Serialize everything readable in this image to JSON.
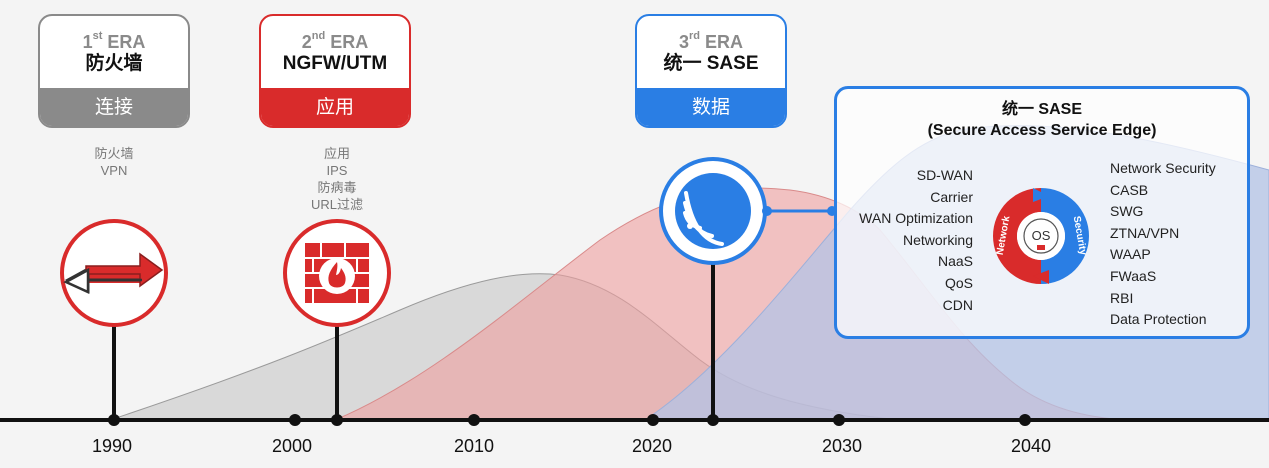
{
  "eras": [
    {
      "num": "1",
      "suffix": "st",
      "era_word": "ERA",
      "name": "防火墙",
      "focus": "连接",
      "color": "#8a8a8a",
      "features": [
        "防火墙",
        "VPN"
      ]
    },
    {
      "num": "2",
      "suffix": "nd",
      "era_word": "ERA",
      "name": "NGFW/UTM",
      "focus": "应用",
      "color": "#d92b2b",
      "features": [
        "应用",
        "IPS",
        "防病毒",
        "URL过滤"
      ]
    },
    {
      "num": "3",
      "suffix": "rd",
      "era_word": "ERA",
      "name": "统一 SASE",
      "focus": "数据",
      "color": "#2a7ee4",
      "features": []
    }
  ],
  "timeline": {
    "years": [
      "1990",
      "2000",
      "2010",
      "2020",
      "2030",
      "2040"
    ]
  },
  "sase": {
    "title_line1": "统一 SASE",
    "title_line2": "(Secure Access Service Edge)",
    "network_items": [
      "SD-WAN",
      "Carrier",
      "WAN Optimization",
      "Networking",
      "NaaS",
      "QoS",
      "CDN"
    ],
    "security_items": [
      "Network Security",
      "CASB",
      "SWG",
      "ZTNA/VPN",
      "WAAP",
      "FWaaS",
      "RBI",
      "Data Protection"
    ],
    "ring_left_label": "Network",
    "ring_right_label": "Security",
    "core_label": "OS"
  },
  "icons": {
    "era1": "bidirectional-arrow-icon",
    "era2": "firewall-flame-icon",
    "era3": "signal-waves-icon"
  },
  "colors": {
    "gray": "#8a8a8a",
    "red": "#d92b2b",
    "blue": "#2a7ee4"
  }
}
